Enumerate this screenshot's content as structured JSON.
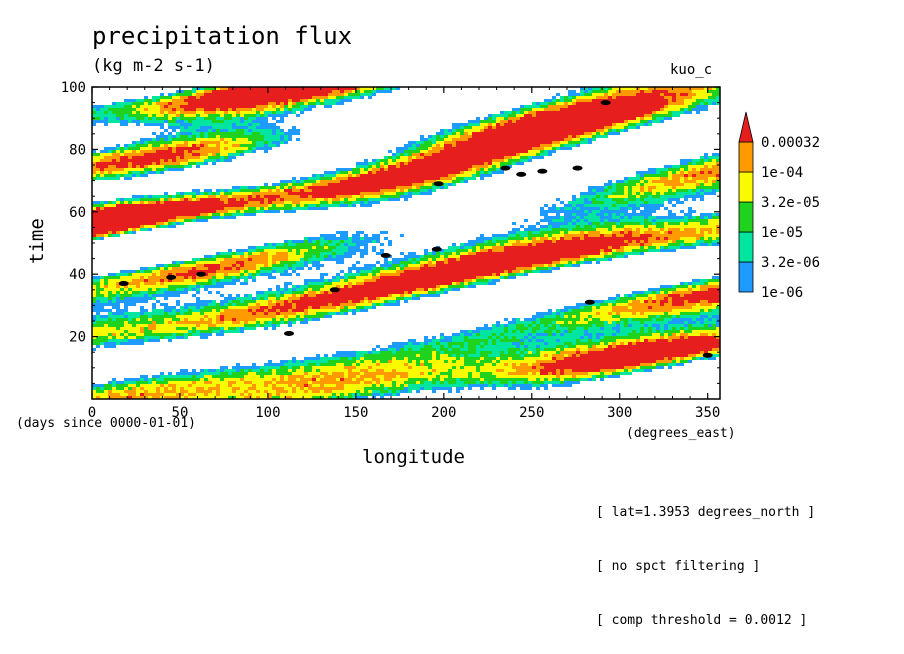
{
  "header": {
    "title": "precipitation flux",
    "units": "(kg m-2 s-1)",
    "run_label": "kuo_c"
  },
  "axes": {
    "xlabel": "longitude",
    "x_units": "(degrees_east)",
    "ylabel": "time",
    "y_units": "(days since 0000-01-01)"
  },
  "notes": [
    "[ lat=1.3953 degrees_north ]",
    "[ no spct filtering ]",
    "[ comp threshold = 0.0012 ]"
  ],
  "colors": {
    "level1": "#1e9bff",
    "level2": "#00e5a0",
    "level3": "#1ed21e",
    "level4": "#fafa00",
    "level5": "#ff9b00",
    "level6": "#e61e1e",
    "marker": "#000000"
  },
  "chart_data": {
    "type": "heatmap",
    "title": "precipitation flux",
    "subtitle": "(kg m-2 s-1)",
    "xlabel": "longitude",
    "ylabel": "time",
    "xlim": [
      0,
      357
    ],
    "ylim": [
      0,
      100
    ],
    "x_ticks": [
      0,
      50,
      100,
      150,
      200,
      250,
      300,
      350
    ],
    "y_ticks": [
      20,
      40,
      60,
      80,
      100
    ],
    "grid": false,
    "colorbar": {
      "labels": [
        "1e-06",
        "3.2e-06",
        "1e-05",
        "3.2e-05",
        "1e-04",
        "0.00032"
      ],
      "colors": [
        "#1e9bff",
        "#00e5a0",
        "#1ed21e",
        "#fafa00",
        "#ff9b00",
        "#e61e1e"
      ],
      "placement": "right"
    },
    "high_value_markers": [
      {
        "x": 18,
        "y": 37
      },
      {
        "x": 45,
        "y": 39
      },
      {
        "x": 62,
        "y": 40
      },
      {
        "x": 112,
        "y": 21
      },
      {
        "x": 138,
        "y": 35
      },
      {
        "x": 167,
        "y": 46
      },
      {
        "x": 196,
        "y": 48
      },
      {
        "x": 197,
        "y": 69
      },
      {
        "x": 235,
        "y": 74
      },
      {
        "x": 244,
        "y": 72
      },
      {
        "x": 256,
        "y": 73
      },
      {
        "x": 276,
        "y": 74
      },
      {
        "x": 283,
        "y": 31
      },
      {
        "x": 292,
        "y": 95
      },
      {
        "x": 350,
        "y": 14
      }
    ]
  }
}
